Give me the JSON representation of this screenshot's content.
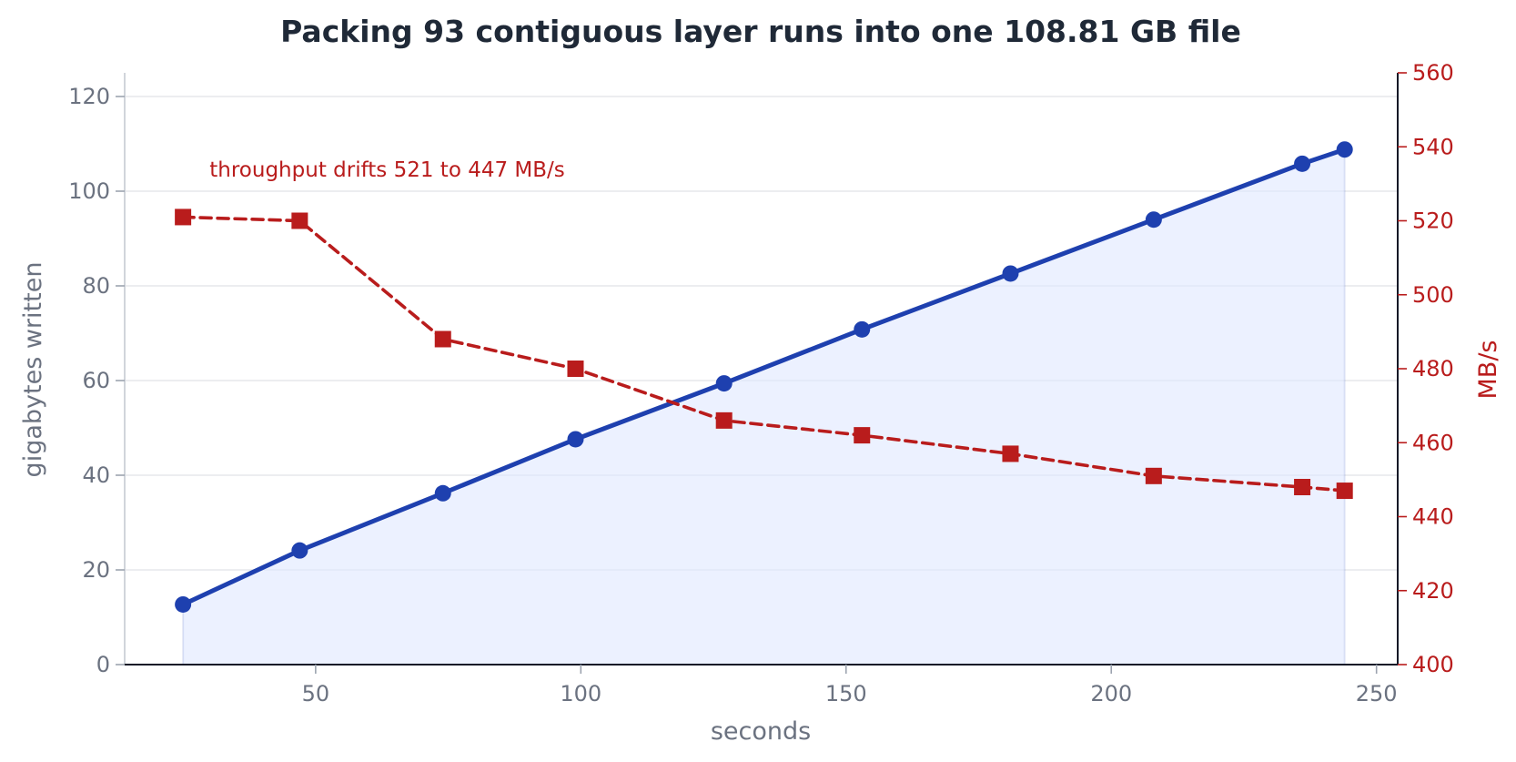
{
  "chart_data": {
    "type": "line",
    "title": "Packing 93 contiguous layer runs into one 108.81 GB file",
    "xlabel": "seconds",
    "ylabel_left": "gigabytes written",
    "ylabel_right": "MB/s",
    "xlim": [
      14,
      254
    ],
    "ylim_left": [
      0,
      125
    ],
    "ylim_right": [
      400,
      560
    ],
    "x_ticks": [
      50,
      100,
      150,
      200,
      250
    ],
    "y_left_ticks": [
      0,
      20,
      40,
      60,
      80,
      100,
      120
    ],
    "y_right_ticks": [
      400,
      420,
      440,
      460,
      480,
      500,
      520,
      540,
      560
    ],
    "grid": true,
    "series": [
      {
        "axis": "left",
        "style": "solid-circle-filled-area",
        "color": "#1e40af",
        "fill_color": "#e0e7ff",
        "x": [
          25,
          47,
          74,
          99,
          127,
          153,
          181,
          208,
          236,
          244
        ],
        "values": [
          12.7,
          24.1,
          36.2,
          47.6,
          59.4,
          70.8,
          82.6,
          94.0,
          105.8,
          108.81
        ]
      },
      {
        "axis": "right",
        "style": "dashed-square",
        "color": "#b91c1c",
        "x": [
          25,
          47,
          74,
          99,
          127,
          153,
          181,
          208,
          236,
          244
        ],
        "values": [
          521,
          520,
          488,
          480,
          466,
          462,
          457,
          451,
          448,
          447
        ]
      }
    ],
    "annotations": [
      {
        "text": "throughput drifts 521 to 447 MB/s",
        "x": 30,
        "y_right": 532
      }
    ]
  }
}
